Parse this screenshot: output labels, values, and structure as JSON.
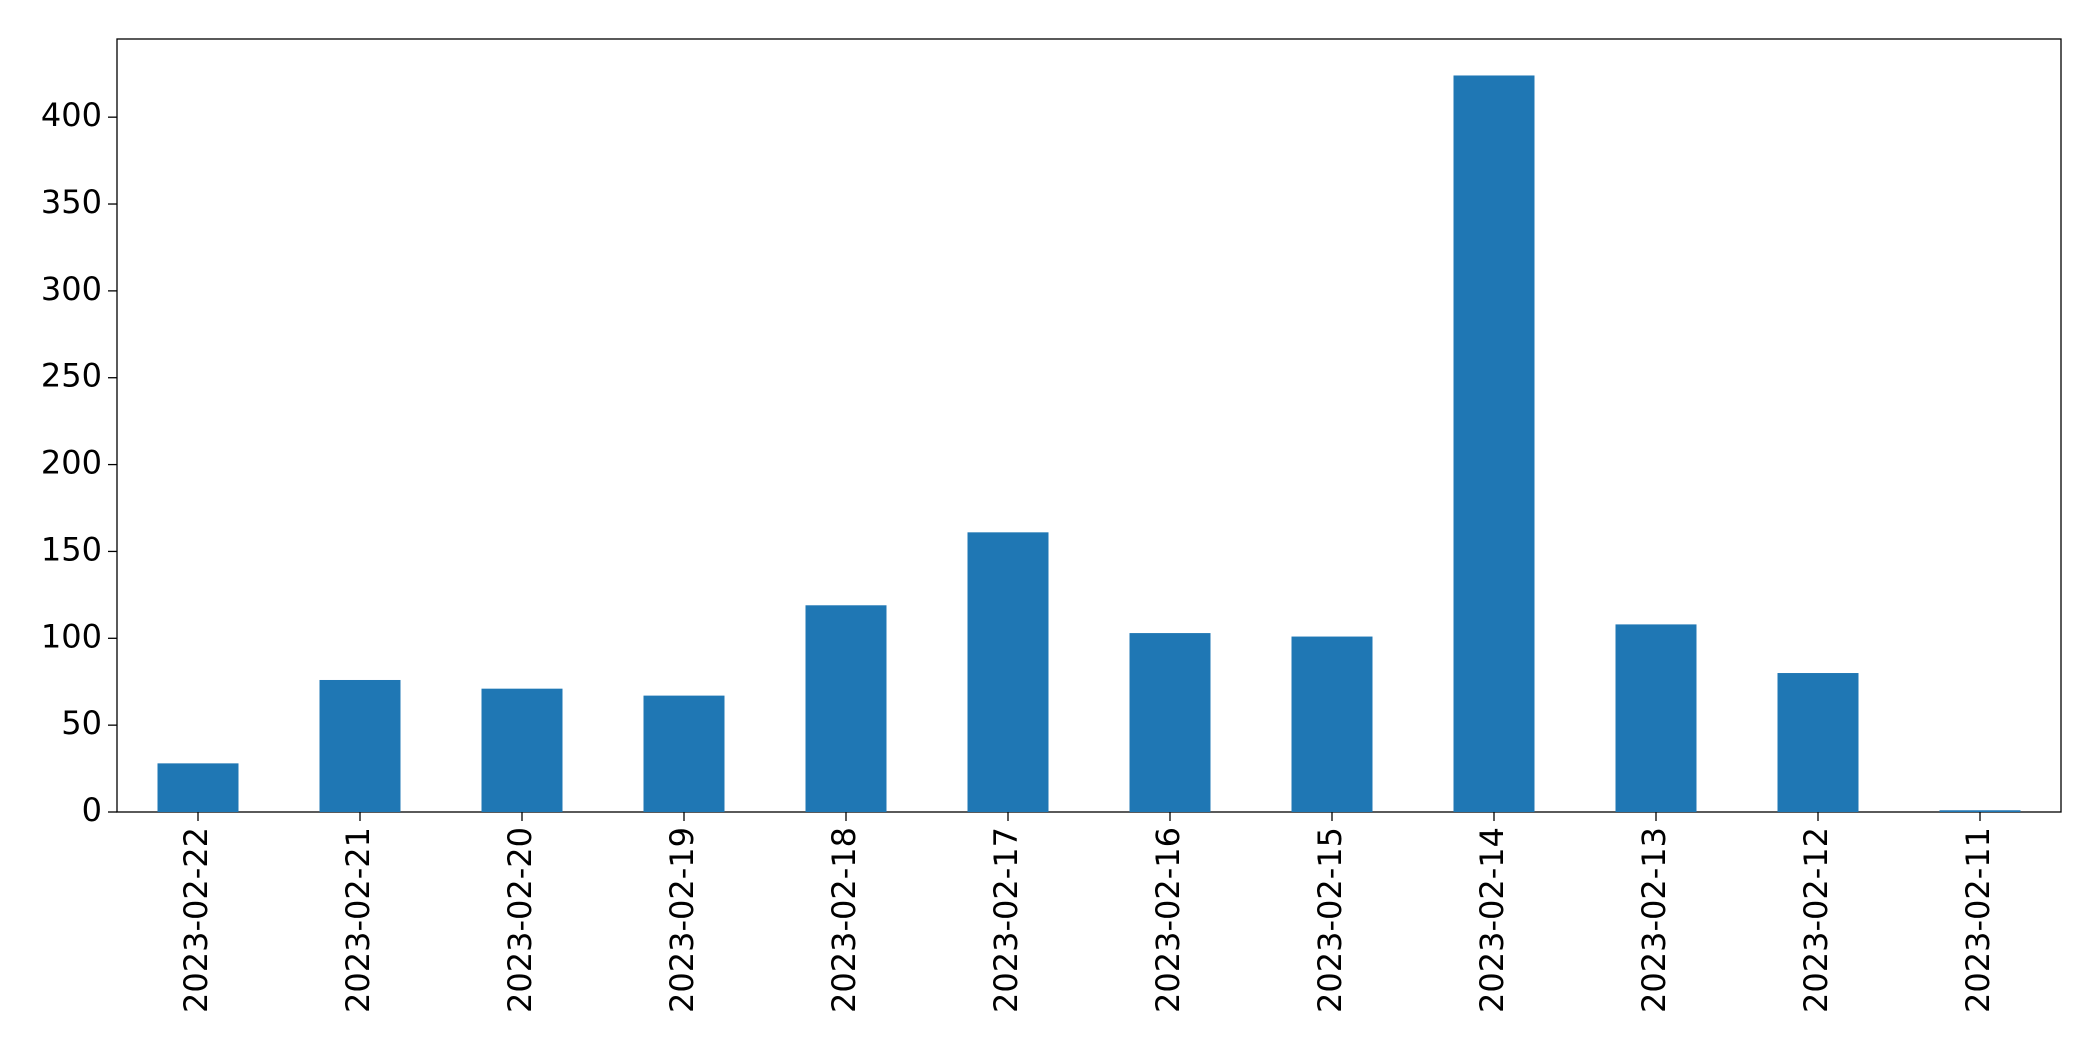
{
  "chart_data": {
    "type": "bar",
    "categories": [
      "2023-02-22",
      "2023-02-21",
      "2023-02-20",
      "2023-02-19",
      "2023-02-18",
      "2023-02-17",
      "2023-02-16",
      "2023-02-15",
      "2023-02-14",
      "2023-02-13",
      "2023-02-12",
      "2023-02-11"
    ],
    "values": [
      28,
      76,
      71,
      67,
      119,
      161,
      103,
      101,
      424,
      108,
      80,
      1
    ],
    "color": "#1f77b4",
    "ylim": [
      0,
      445
    ],
    "yticks": [
      0,
      50,
      100,
      150,
      200,
      250,
      300,
      350,
      400
    ],
    "grid": false
  }
}
